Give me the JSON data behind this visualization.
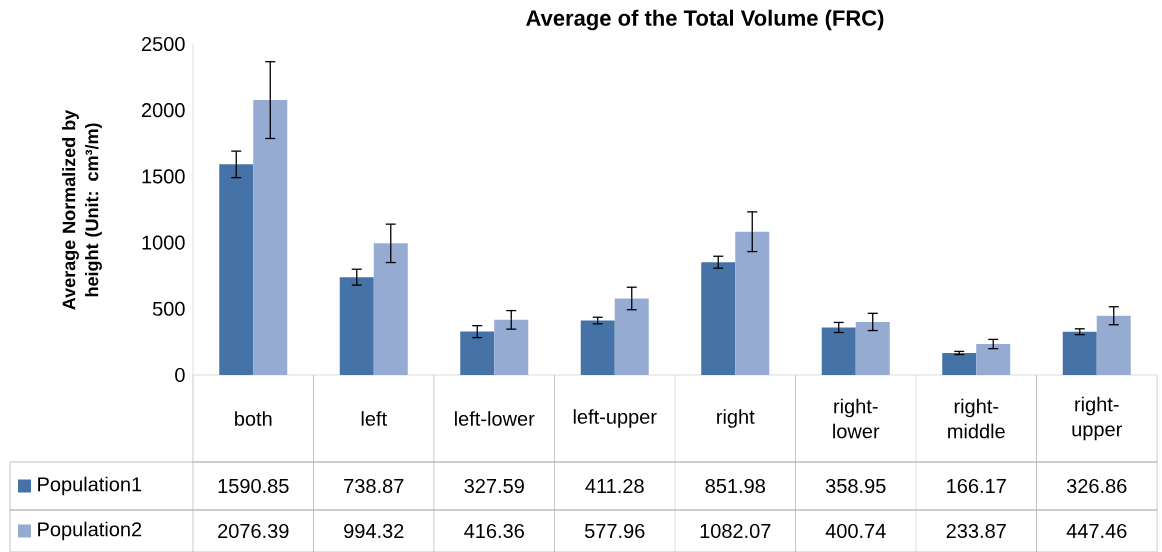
{
  "chart_data": {
    "type": "bar",
    "title": "Average of the Total Volume (FRC)",
    "ylabel": "Average Normalized by height (Unit: cm³/m)",
    "categories": [
      "both",
      "left",
      "left-lower",
      "left-upper",
      "right",
      "right-lower",
      "right-middle",
      "right-upper"
    ],
    "series": [
      {
        "name": "Population1",
        "color": "#4673a7",
        "values": [
          1590.85,
          738.87,
          327.59,
          411.28,
          851.98,
          358.95,
          166.17,
          326.86
        ],
        "errors": [
          100,
          60,
          45,
          25,
          45,
          38,
          12,
          22
        ]
      },
      {
        "name": "Population2",
        "color": "#95abd2",
        "values": [
          2076.39,
          994.32,
          416.36,
          577.96,
          1082.07,
          400.74,
          233.87,
          447.46
        ],
        "errors": [
          290,
          145,
          70,
          85,
          150,
          65,
          35,
          68
        ]
      }
    ],
    "ylim": [
      0,
      2500
    ],
    "yticks": [
      0,
      500,
      1000,
      1500,
      2000,
      2500
    ],
    "data_labels": true,
    "legend": "bottom left"
  }
}
